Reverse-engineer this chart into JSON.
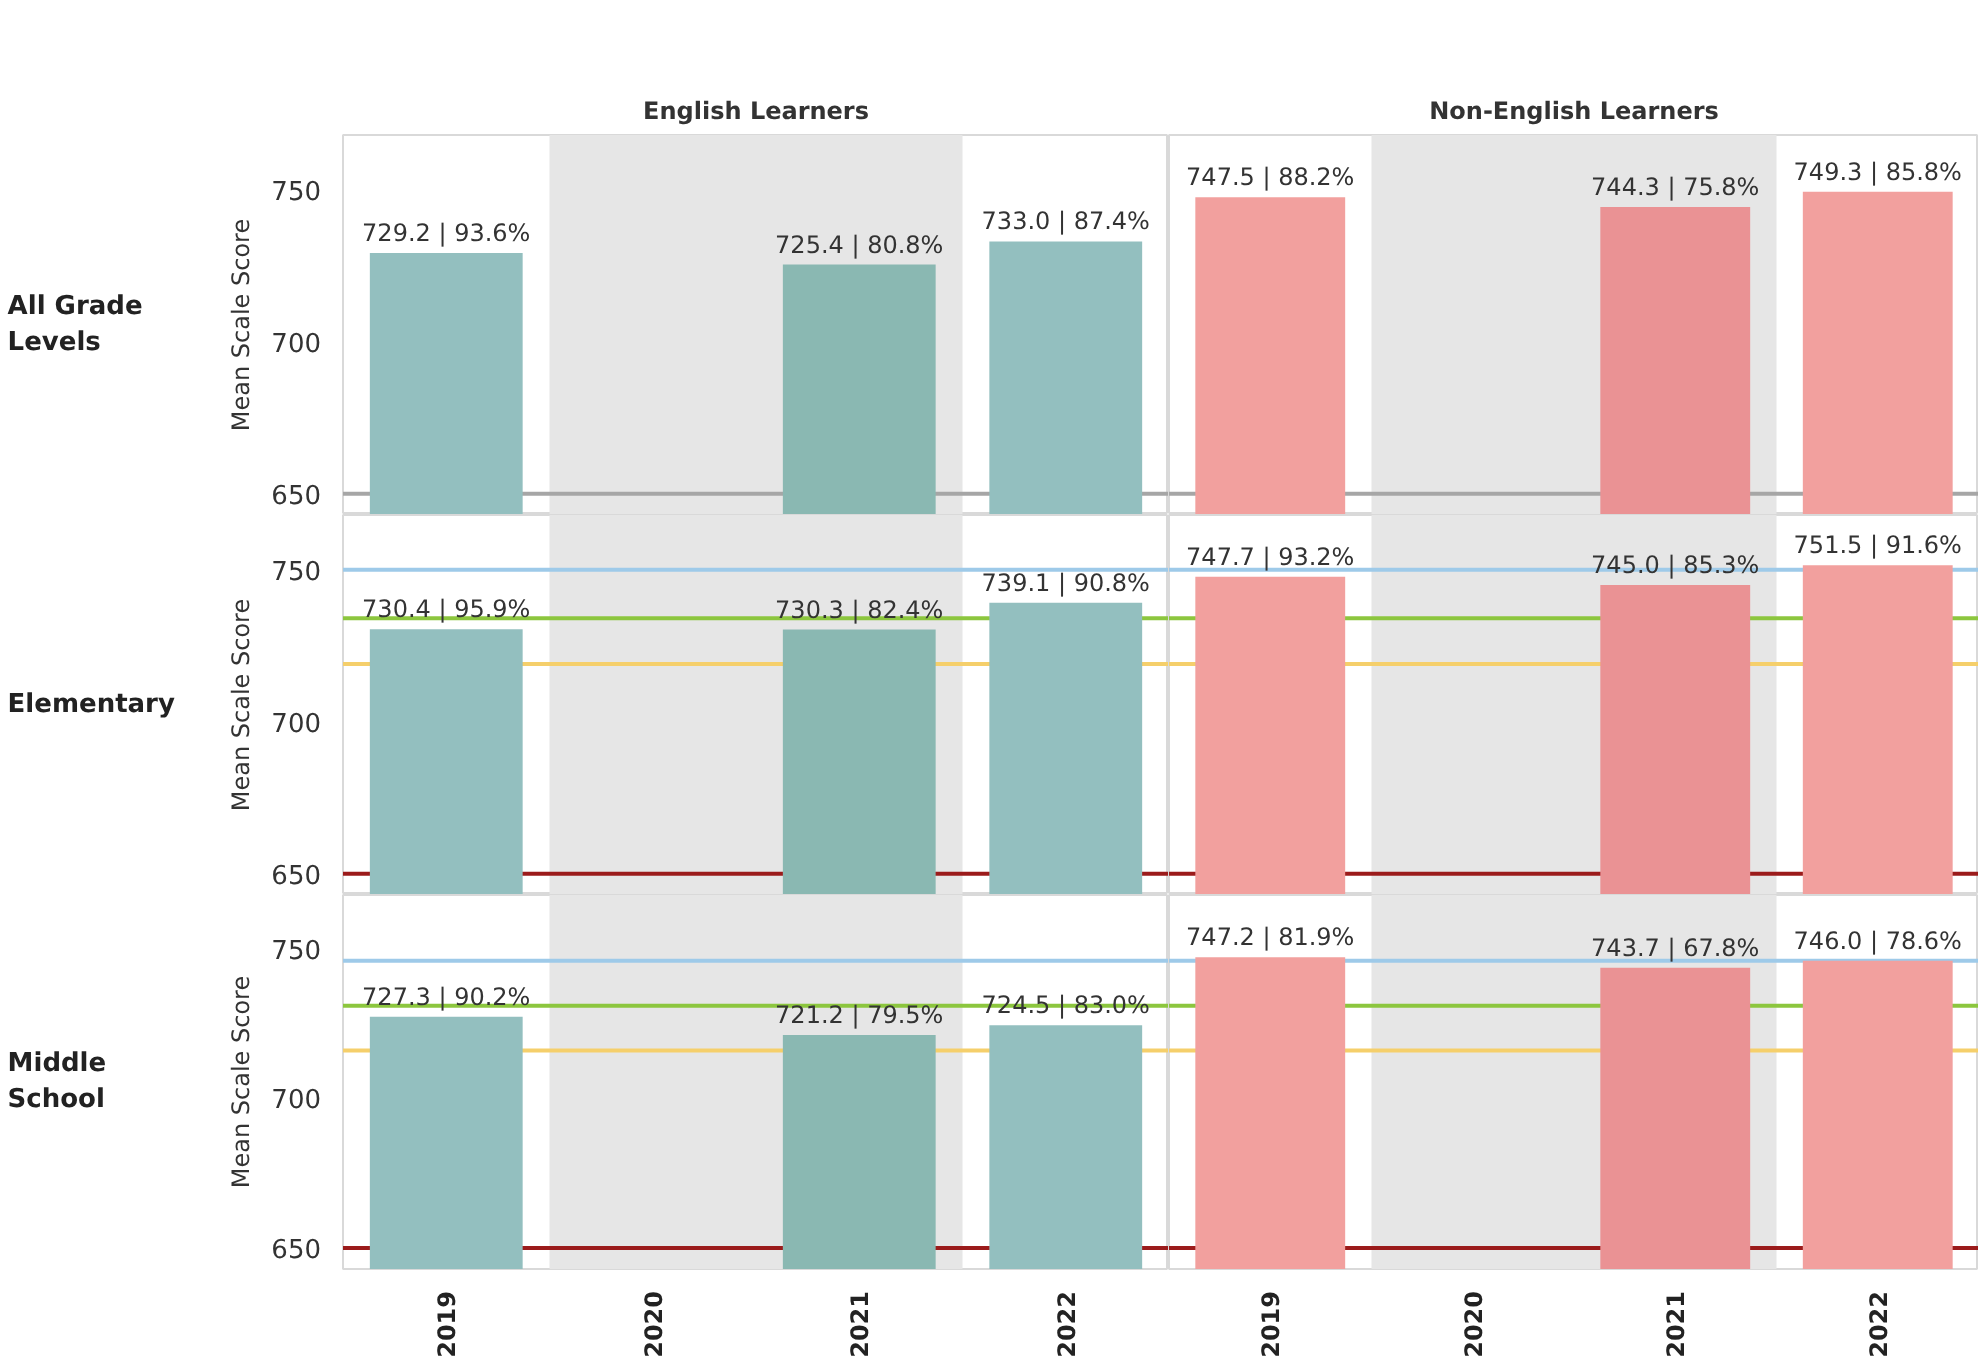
{
  "chart_data": [
    {
      "type": "bar",
      "title": "English Learners",
      "annotations": [
        "All Grade Levels"
      ],
      "ylabel": "Mean Scale Score",
      "categories": [
        "2019",
        "2020",
        "2021",
        "2022"
      ],
      "tick_labels": "y",
      "values": [
        729.2,
        null,
        725.4,
        733.0
      ],
      "value_labels": [
        "729.2 | 93.6%",
        null,
        "725.4 | 80.8%",
        "733.0 | 87.4%"
      ],
      "colors": [
        "#93bfbf",
        "#93bfbf",
        "#8ab8b2",
        "#93bfbf"
      ],
      "ylim": [
        643,
        768
      ],
      "yticks": [
        650,
        700,
        750
      ],
      "ref_lines": [
        {
          "axis": "y",
          "value": 650,
          "color": "#a6a6a6"
        }
      ],
      "bands": [
        {
          "axis": "x",
          "from": "2020",
          "to": "2021",
          "color": "#e6e6e6"
        }
      ]
    },
    {
      "type": "bar",
      "title": "Non-English Learners",
      "categories": [
        "2019",
        "2020",
        "2021",
        "2022"
      ],
      "tick_labels": false,
      "values": [
        747.5,
        null,
        744.3,
        749.3
      ],
      "value_labels": [
        "747.5 | 88.2%",
        null,
        "744.3 | 75.8%",
        "749.3 | 85.8%"
      ],
      "colors": [
        "#f2a09e",
        "#f2a09e",
        "#ea9294",
        "#f2a09e"
      ],
      "ylim": [
        643,
        768
      ],
      "yticks": [
        650,
        700,
        750
      ],
      "ref_lines": [
        {
          "axis": "y",
          "value": 650,
          "color": "#a6a6a6"
        }
      ],
      "bands": [
        {
          "axis": "x",
          "from": "2020",
          "to": "2021",
          "color": "#e6e6e6"
        }
      ]
    },
    {
      "type": "bar",
      "annotations": [
        "Elementary"
      ],
      "ylabel": "Mean Scale Score",
      "categories": [
        "2019",
        "2020",
        "2021",
        "2022"
      ],
      "tick_labels": "y",
      "values": [
        730.4,
        null,
        730.3,
        739.1
      ],
      "value_labels": [
        "730.4 | 95.9%",
        null,
        "730.3 | 82.4%",
        "739.1 | 90.8%"
      ],
      "colors": [
        "#93bfbf",
        "#93bfbf",
        "#8ab8b2",
        "#93bfbf"
      ],
      "ylim": [
        643,
        768
      ],
      "yticks": [
        650,
        700,
        750
      ],
      "ref_lines": [
        {
          "axis": "y",
          "value": 750,
          "color": "#9ecae9"
        },
        {
          "axis": "y",
          "value": 734,
          "color": "#8cc63e"
        },
        {
          "axis": "y",
          "value": 719,
          "color": "#f5cf6b"
        },
        {
          "axis": "y",
          "value": 650,
          "color": "#9b1b1b"
        }
      ],
      "bands": [
        {
          "axis": "x",
          "from": "2020",
          "to": "2021",
          "color": "#e6e6e6"
        }
      ]
    },
    {
      "type": "bar",
      "categories": [
        "2019",
        "2020",
        "2021",
        "2022"
      ],
      "tick_labels": false,
      "values": [
        747.7,
        null,
        745.0,
        751.5
      ],
      "value_labels": [
        "747.7 | 93.2%",
        null,
        "745.0 | 85.3%",
        "751.5 | 91.6%"
      ],
      "colors": [
        "#f2a09e",
        "#f2a09e",
        "#ea9294",
        "#f2a09e"
      ],
      "ylim": [
        643,
        768
      ],
      "yticks": [
        650,
        700,
        750
      ],
      "ref_lines": [
        {
          "axis": "y",
          "value": 750,
          "color": "#9ecae9"
        },
        {
          "axis": "y",
          "value": 734,
          "color": "#8cc63e"
        },
        {
          "axis": "y",
          "value": 719,
          "color": "#f5cf6b"
        },
        {
          "axis": "y",
          "value": 650,
          "color": "#9b1b1b"
        }
      ],
      "bands": [
        {
          "axis": "x",
          "from": "2020",
          "to": "2021",
          "color": "#e6e6e6"
        }
      ]
    },
    {
      "type": "bar",
      "annotations": [
        "Middle School"
      ],
      "ylabel": "Mean Scale Score",
      "categories": [
        "2019",
        "2020",
        "2021",
        "2022"
      ],
      "values": [
        727.3,
        null,
        721.2,
        724.5
      ],
      "value_labels": [
        "727.3 | 90.2%",
        null,
        "721.2 | 79.5%",
        "724.5 | 83.0%"
      ],
      "colors": [
        "#93bfbf",
        "#93bfbf",
        "#8ab8b2",
        "#93bfbf"
      ],
      "ylim": [
        643,
        768
      ],
      "yticks": [
        650,
        700,
        750
      ],
      "ref_lines": [
        {
          "axis": "y",
          "value": 746,
          "color": "#9ecae9"
        },
        {
          "axis": "y",
          "value": 731,
          "color": "#8cc63e"
        },
        {
          "axis": "y",
          "value": 716,
          "color": "#f5cf6b"
        },
        {
          "axis": "y",
          "value": 650,
          "color": "#9b1b1b"
        }
      ],
      "bands": [
        {
          "axis": "x",
          "from": "2020",
          "to": "2021",
          "color": "#e6e6e6"
        }
      ]
    },
    {
      "type": "bar",
      "categories": [
        "2019",
        "2020",
        "2021",
        "2022"
      ],
      "tick_labels": "x",
      "values": [
        747.2,
        null,
        743.7,
        746.0
      ],
      "value_labels": [
        "747.2 | 81.9%",
        null,
        "743.7 | 67.8%",
        "746.0 | 78.6%"
      ],
      "colors": [
        "#f2a09e",
        "#f2a09e",
        "#ea9294",
        "#f2a09e"
      ],
      "ylim": [
        643,
        768
      ],
      "yticks": [
        650,
        700,
        750
      ],
      "ref_lines": [
        {
          "axis": "y",
          "value": 746,
          "color": "#9ecae9"
        },
        {
          "axis": "y",
          "value": 731,
          "color": "#8cc63e"
        },
        {
          "axis": "y",
          "value": 716,
          "color": "#f5cf6b"
        },
        {
          "axis": "y",
          "value": 650,
          "color": "#9b1b1b"
        }
      ],
      "bands": [
        {
          "axis": "x",
          "from": "2020",
          "to": "2021",
          "color": "#e6e6e6"
        }
      ]
    }
  ]
}
